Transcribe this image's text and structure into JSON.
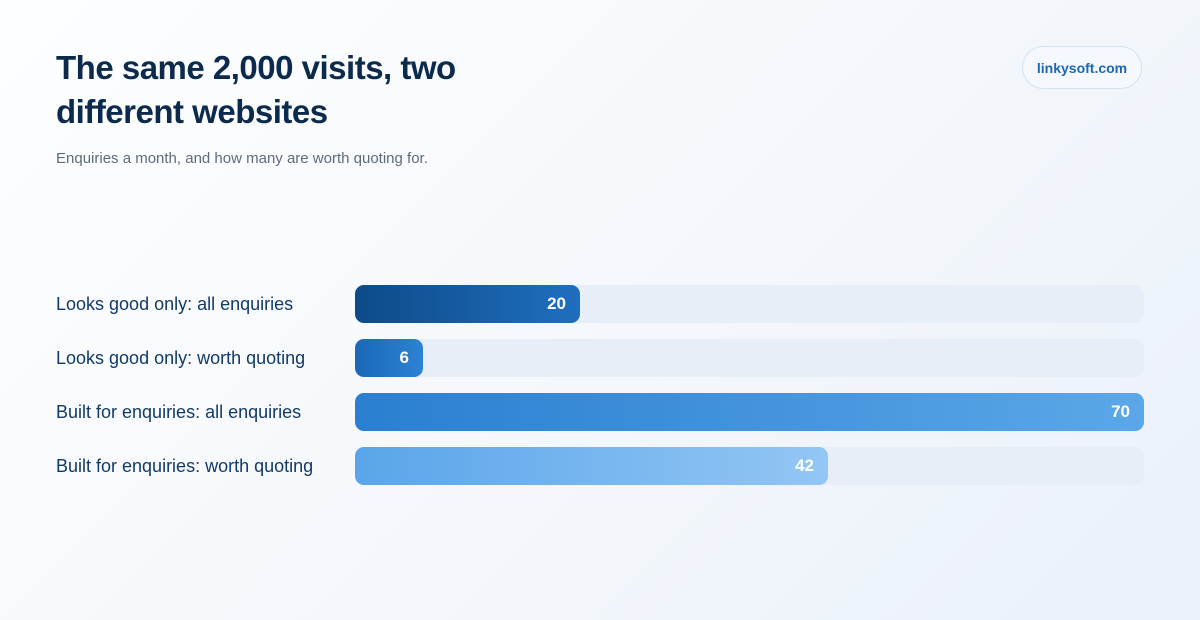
{
  "header": {
    "title": "The same 2,000 visits, two different websites",
    "subtitle": "Enquiries a month, and how many are worth quoting for."
  },
  "brand": {
    "label": "linkysoft.com"
  },
  "chart_data": {
    "type": "bar",
    "orientation": "horizontal",
    "title": "The same 2,000 visits, two different websites",
    "subtitle": "Enquiries a month, and how many are worth quoting for.",
    "categories": [
      "Looks good only: all enquiries",
      "Looks good only: worth quoting",
      "Built for enquiries: all enquiries",
      "Built for enquiries: worth quoting"
    ],
    "values": [
      20,
      6,
      70,
      42
    ],
    "xlim": [
      0,
      70
    ],
    "grid": false,
    "colors": {
      "bars": [
        [
          "#0d4a88",
          "#1f6fbf"
        ],
        [
          "#1a68b8",
          "#2d82d3"
        ],
        [
          "#2a7fd0",
          "#5ba7e8"
        ],
        [
          "#5aa5ea",
          "#93c6f4"
        ]
      ],
      "track": "#e8eef8",
      "label": "#123a66",
      "value": "#ffffff"
    }
  }
}
